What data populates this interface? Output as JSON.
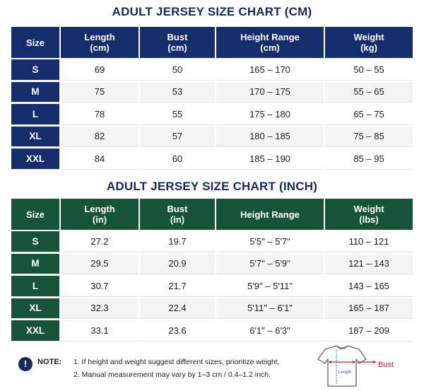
{
  "cm_chart": {
    "title": "ADULT JERSEY SIZE CHART (CM)",
    "headers": [
      "Size",
      "Length\n(cm)",
      "Bust\n(cm)",
      "Height Range\n(cm)",
      "Weight\n(kg)"
    ],
    "rows": [
      [
        "S",
        "69",
        "50",
        "165 – 170",
        "50 – 55"
      ],
      [
        "M",
        "75",
        "53",
        "170 – 175",
        "55 – 65"
      ],
      [
        "L",
        "78",
        "55",
        "175 – 180",
        "65 – 75"
      ],
      [
        "XL",
        "82",
        "57",
        "180 – 185",
        "75 – 85"
      ],
      [
        "XXL",
        "84",
        "60",
        "185 – 190",
        "85 – 95"
      ]
    ]
  },
  "inch_chart": {
    "title": "ADULT JERSEY SIZE CHART (INCH)",
    "headers": [
      "Size",
      "Length\n(in)",
      "Bust\n(in)",
      "Height Range",
      "Weight\n(lbs)"
    ],
    "rows": [
      [
        "S",
        "27.2",
        "19.7",
        "5'5\" – 5'7\"",
        "110 – 121"
      ],
      [
        "M",
        "29.5",
        "20.9",
        "5'7\" – 5'9\"",
        "121 – 143"
      ],
      [
        "L",
        "30.7",
        "21.7",
        "5'9\" – 5'11\"",
        "143 – 165"
      ],
      [
        "XL",
        "32.3",
        "22.4",
        "5'11\" – 6'1\"",
        "165 – 187"
      ],
      [
        "XXL",
        "33.1",
        "23.6",
        "6'1\" – 6'3\"",
        "187 – 209"
      ]
    ]
  },
  "note": {
    "icon_glyph": "!",
    "label": "NOTE:",
    "lines": [
      "1. If height and weight suggest different sizes, prioritize weight.",
      "2. Manual measurement may vary by 1–3 cm / 0.4–1.2 inch."
    ]
  },
  "diagram": {
    "icon": "tshirt-measure-icon",
    "bust_label": "Bust",
    "length_label": "Length",
    "accent_color": "#c31c24",
    "line_color": "#2a5fbf"
  },
  "colors": {
    "cm_header": "#152d6b",
    "inch_header": "#17533a",
    "title": "#14295f"
  }
}
